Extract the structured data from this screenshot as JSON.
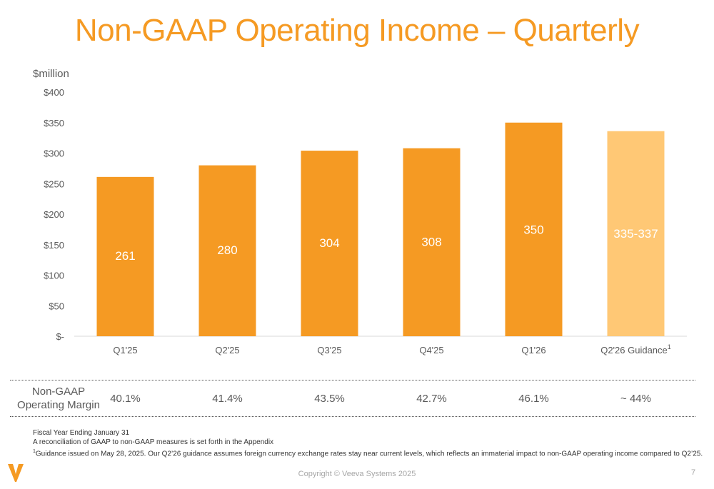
{
  "page": {
    "title": "Non-GAAP Operating Income – Quarterly",
    "copyright": "Copyright © Veeva Systems 2025",
    "page_number": "7"
  },
  "chart_data": {
    "type": "bar",
    "title": "Non-GAAP Operating Income – Quarterly",
    "ylabel": "$million",
    "xlabel": "",
    "ylim": [
      0,
      400
    ],
    "yticks": [
      0,
      50,
      100,
      150,
      200,
      250,
      300,
      350,
      400
    ],
    "ytick_labels": [
      "$-",
      "$50",
      "$100",
      "$150",
      "$200",
      "$250",
      "$300",
      "$350",
      "$400"
    ],
    "categories": [
      "Q1'25",
      "Q2'25",
      "Q3'25",
      "Q4'25",
      "Q1'26",
      "Q2'26 Guidance"
    ],
    "category_superscripts": [
      "",
      "",
      "",
      "",
      "",
      "1"
    ],
    "values": [
      261,
      280,
      304,
      308,
      350,
      336
    ],
    "data_labels": [
      "261",
      "280",
      "304",
      "308",
      "350",
      "335-337"
    ],
    "bar_colors": [
      "#F59A23",
      "#F59A23",
      "#F59A23",
      "#F59A23",
      "#F59A23",
      "#FFC875"
    ],
    "grid": false,
    "legend": "none"
  },
  "margins": {
    "label_line1": "Non-GAAP",
    "label_line2": "Operating Margin",
    "values": [
      "40.1%",
      "41.4%",
      "43.5%",
      "42.7%",
      "46.1%",
      "~ 44%"
    ]
  },
  "notes": {
    "line1": "Fiscal Year Ending January 31",
    "line2": "A reconciliation of GAAP to non-GAAP measures is set forth in the Appendix",
    "line3_sup": "1",
    "line3": "Guidance issued on May 28, 2025. Our Q2’26 guidance assumes foreign currency exchange rates stay near current levels, which reflects an immaterial impact to non-GAAP operating income compared to Q2’25."
  },
  "colors": {
    "accent": "#F59A23",
    "guidance": "#FFC875",
    "text": "#595959",
    "label_white": "#ffffff"
  }
}
